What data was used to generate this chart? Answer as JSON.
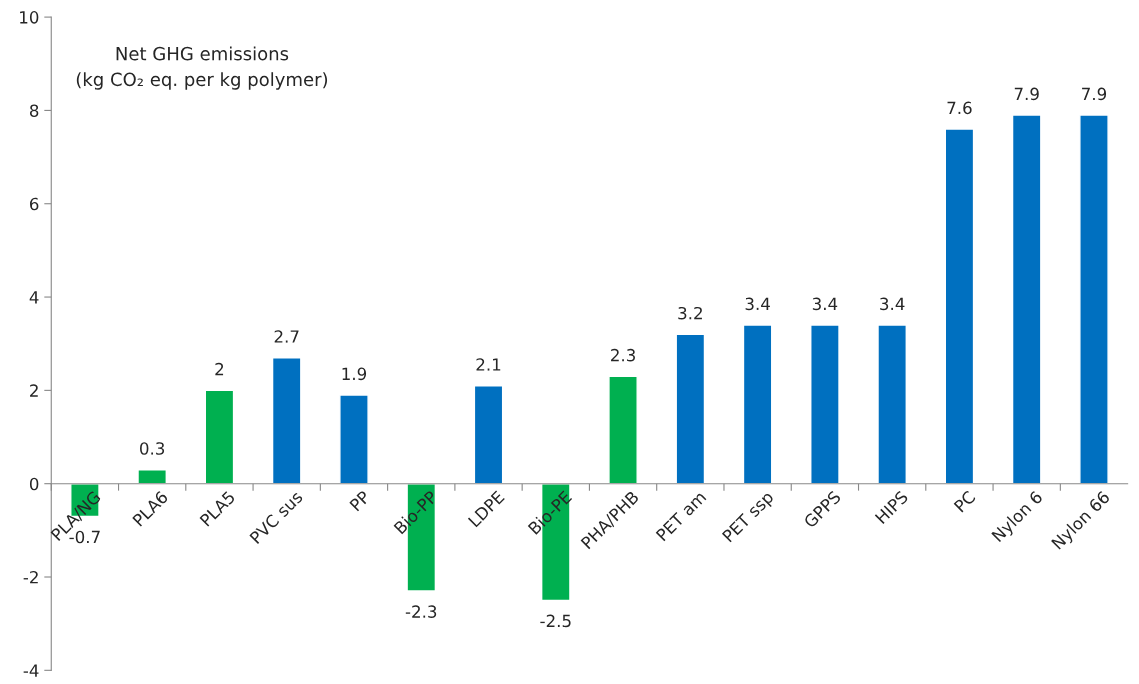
{
  "chart_data": {
    "type": "bar",
    "title": "Net GHG emissions\n(kg CO₂ eq. per kg polymer)",
    "categories": [
      "PLA/NG",
      "PLA6",
      "PLA5",
      "PVC sus",
      "PP",
      "Bio-PP",
      "LDPE",
      "Bio-PE",
      "PHA/PHB",
      "PET am",
      "PET ssp",
      "GPPS",
      "HIPS",
      "PC",
      "Nylon 6",
      "Nylon 66"
    ],
    "values": [
      -0.7,
      0.3,
      2,
      2.7,
      1.9,
      -2.3,
      2.1,
      -2.5,
      2.3,
      3.2,
      3.4,
      3.4,
      3.4,
      7.6,
      7.9,
      7.9
    ],
    "colors": [
      "#00b050",
      "#00b050",
      "#00b050",
      "#0070c0",
      "#0070c0",
      "#00b050",
      "#0070c0",
      "#00b050",
      "#00b050",
      "#0070c0",
      "#0070c0",
      "#0070c0",
      "#0070c0",
      "#0070c0",
      "#0070c0",
      "#0070c0"
    ],
    "ylim": [
      -4,
      10
    ],
    "yticks": [
      -4,
      -2,
      0,
      2,
      4,
      6,
      8,
      10
    ],
    "data_labels": true,
    "grid": false,
    "legend": false
  }
}
